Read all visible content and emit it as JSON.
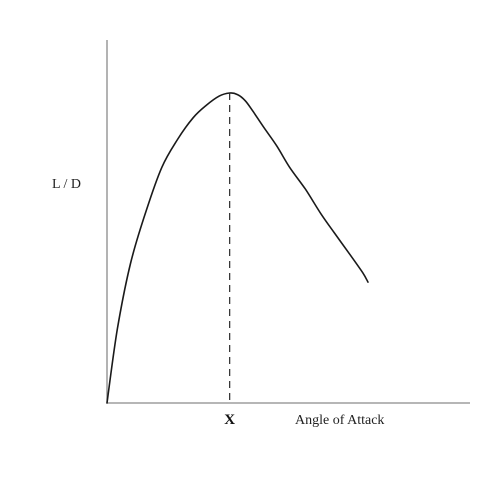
{
  "chart_data": {
    "type": "line",
    "title": "",
    "ylabel": "L / D",
    "xlabel": "Angle of Attack",
    "xlim": [
      0,
      1
    ],
    "ylim": [
      0,
      1
    ],
    "series": [
      {
        "x": [
          0.0,
          0.04,
          0.09,
          0.15,
          0.21,
          0.27,
          0.33,
          0.38,
          0.43,
          0.47,
          0.5,
          0.53,
          0.56,
          0.6,
          0.65,
          0.7,
          0.76,
          0.82,
          0.87,
          0.93,
          0.98,
          1.0
        ],
        "y": [
          0.0,
          0.24,
          0.45,
          0.62,
          0.76,
          0.85,
          0.92,
          0.96,
          0.99,
          1.0,
          0.995,
          0.975,
          0.94,
          0.89,
          0.83,
          0.76,
          0.69,
          0.61,
          0.55,
          0.48,
          0.42,
          0.39
        ]
      }
    ],
    "marker": {
      "x": 0.47,
      "label": "X",
      "style": "dashed"
    },
    "grid": false,
    "ticks": false
  }
}
